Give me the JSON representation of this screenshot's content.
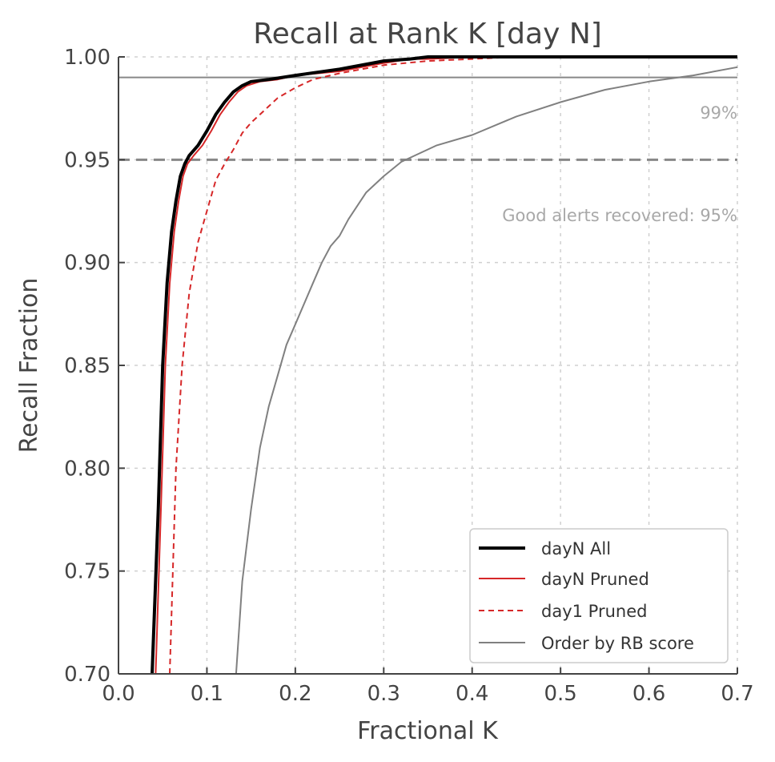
{
  "chart_data": {
    "type": "line",
    "title": "Recall at Rank K [day N]",
    "xlabel": "Fractional K",
    "ylabel": "Recall Fraction",
    "xlim": [
      0.0,
      0.7
    ],
    "ylim": [
      0.7,
      1.0
    ],
    "x_ticks": [
      0.0,
      0.1,
      0.2,
      0.3,
      0.4,
      0.5,
      0.6,
      0.7
    ],
    "y_ticks": [
      0.7,
      0.75,
      0.8,
      0.85,
      0.9,
      0.95,
      1.0
    ],
    "x_tick_labels": [
      "0.0",
      "0.1",
      "0.2",
      "0.3",
      "0.4",
      "0.5",
      "0.6",
      "0.7"
    ],
    "y_tick_labels": [
      "0.70",
      "0.75",
      "0.80",
      "0.85",
      "0.90",
      "0.95",
      "1.00"
    ],
    "grid": true,
    "legend_position": "bottom-right",
    "reference_lines": [
      {
        "y": 0.99,
        "style": "solid",
        "color": "#888888",
        "label": "99%"
      },
      {
        "y": 0.95,
        "style": "dashed",
        "color": "#888888",
        "label": "Good alerts recovered: 95%"
      }
    ],
    "series": [
      {
        "name": "dayN All",
        "color": "#000000",
        "style": "solid-thick",
        "x": [
          0.038,
          0.045,
          0.05,
          0.055,
          0.06,
          0.065,
          0.07,
          0.075,
          0.08,
          0.09,
          0.1,
          0.11,
          0.12,
          0.13,
          0.14,
          0.15,
          0.17,
          0.2,
          0.25,
          0.3,
          0.33,
          0.35,
          0.4,
          0.45,
          0.5,
          0.55,
          0.6,
          0.65,
          0.7
        ],
        "y": [
          0.7,
          0.78,
          0.85,
          0.89,
          0.915,
          0.93,
          0.942,
          0.948,
          0.952,
          0.957,
          0.964,
          0.972,
          0.978,
          0.983,
          0.986,
          0.988,
          0.989,
          0.991,
          0.994,
          0.998,
          0.999,
          1.0,
          1.0,
          1.0,
          1.0,
          1.0,
          1.0,
          1.0,
          1.0
        ]
      },
      {
        "name": "dayN Pruned",
        "color": "#d62728",
        "style": "solid",
        "x": [
          0.042,
          0.048,
          0.053,
          0.058,
          0.063,
          0.068,
          0.073,
          0.078,
          0.085,
          0.095,
          0.105,
          0.115,
          0.125,
          0.135,
          0.145,
          0.16,
          0.18,
          0.2,
          0.25,
          0.3,
          0.33,
          0.35,
          0.4,
          0.5,
          0.6,
          0.7
        ],
        "y": [
          0.7,
          0.78,
          0.85,
          0.89,
          0.915,
          0.93,
          0.942,
          0.948,
          0.952,
          0.957,
          0.964,
          0.972,
          0.978,
          0.983,
          0.986,
          0.988,
          0.989,
          0.991,
          0.993,
          0.997,
          0.999,
          0.999,
          1.0,
          1.0,
          1.0,
          1.0
        ]
      },
      {
        "name": "day1 Pruned",
        "color": "#d62728",
        "style": "dashed",
        "x": [
          0.058,
          0.065,
          0.072,
          0.08,
          0.09,
          0.1,
          0.11,
          0.12,
          0.13,
          0.14,
          0.15,
          0.16,
          0.17,
          0.18,
          0.2,
          0.22,
          0.25,
          0.3,
          0.35,
          0.4,
          0.45,
          0.5,
          0.6,
          0.7
        ],
        "y": [
          0.7,
          0.8,
          0.85,
          0.885,
          0.91,
          0.925,
          0.94,
          0.948,
          0.955,
          0.963,
          0.968,
          0.972,
          0.976,
          0.98,
          0.985,
          0.989,
          0.992,
          0.996,
          0.998,
          0.999,
          1.0,
          1.0,
          1.0,
          1.0
        ]
      },
      {
        "name": "Order by RB score",
        "color": "#808080",
        "style": "solid",
        "x": [
          0.133,
          0.14,
          0.15,
          0.16,
          0.17,
          0.18,
          0.19,
          0.2,
          0.21,
          0.22,
          0.23,
          0.24,
          0.25,
          0.26,
          0.28,
          0.3,
          0.32,
          0.34,
          0.36,
          0.4,
          0.45,
          0.5,
          0.55,
          0.6,
          0.65,
          0.7
        ],
        "y": [
          0.7,
          0.745,
          0.78,
          0.81,
          0.83,
          0.845,
          0.86,
          0.87,
          0.88,
          0.89,
          0.9,
          0.908,
          0.913,
          0.921,
          0.934,
          0.942,
          0.949,
          0.953,
          0.957,
          0.962,
          0.971,
          0.978,
          0.984,
          0.988,
          0.991,
          0.995
        ]
      }
    ]
  }
}
